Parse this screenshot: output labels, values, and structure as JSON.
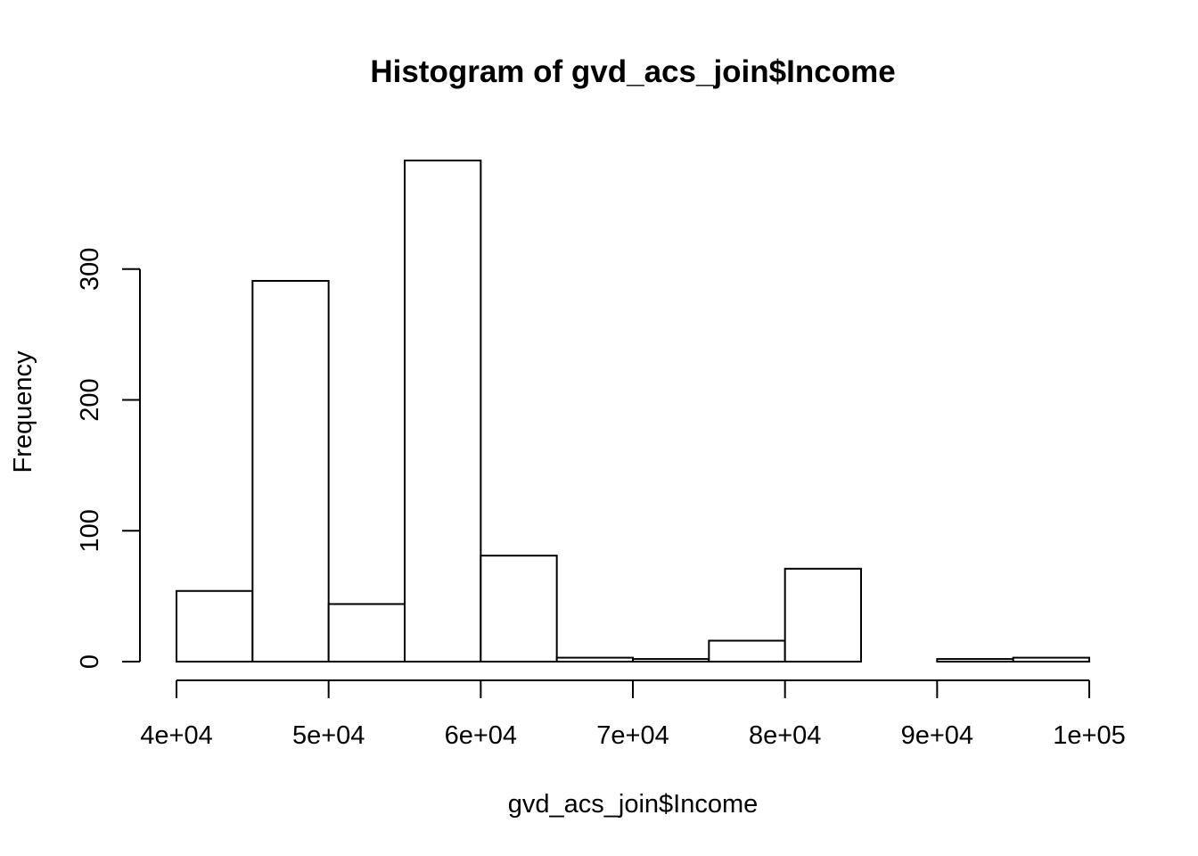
{
  "chart_data": {
    "type": "bar",
    "title": "Histogram of gvd_acs_join$Income",
    "xlabel": "gvd_acs_join$Income",
    "ylabel": "Frequency",
    "bin_edges": [
      40000,
      45000,
      50000,
      55000,
      60000,
      65000,
      70000,
      75000,
      80000,
      85000,
      90000,
      95000,
      100000
    ],
    "values": [
      54,
      291,
      44,
      383,
      81,
      3,
      2,
      16,
      71,
      0,
      2,
      3
    ],
    "xlim": [
      40000,
      100000
    ],
    "ylim": [
      0,
      383
    ],
    "x_ticks": [
      40000,
      50000,
      60000,
      70000,
      80000,
      90000,
      100000
    ],
    "x_tick_labels": [
      "4e+04",
      "5e+04",
      "6e+04",
      "7e+04",
      "8e+04",
      "9e+04",
      "1e+05"
    ],
    "y_ticks": [
      0,
      100,
      200,
      300
    ],
    "y_tick_labels": [
      "0",
      "100",
      "200",
      "300"
    ],
    "grid": false,
    "legend": "none"
  }
}
